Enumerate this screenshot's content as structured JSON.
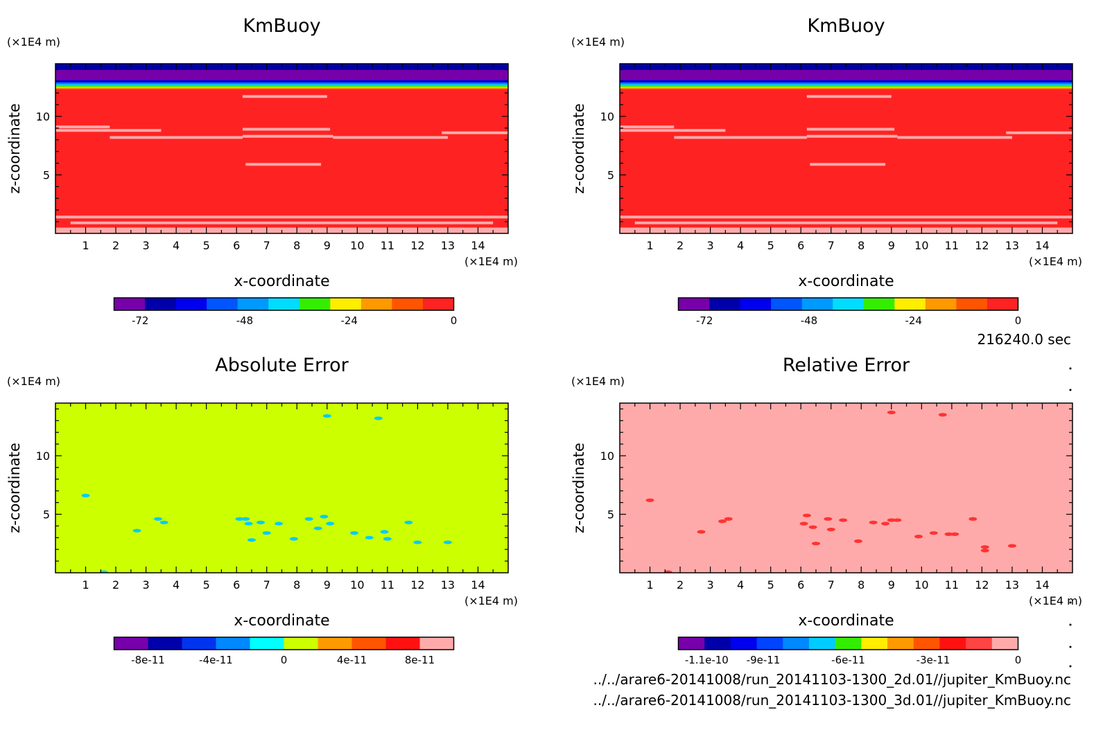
{
  "figure": {
    "time_label": "216240.0 sec",
    "file_lines": [
      "../../arare6-20141008/run_20141103-1300_2d.01//jupiter_KmBuoy.nc",
      "../../arare6-20141008/run_20141103-1300_3d.01//jupiter_KmBuoy.nc"
    ]
  },
  "chart_data": [
    {
      "type": "heatmap",
      "title": "KmBuoy",
      "xlabel": "x-coordinate",
      "ylabel": "z-coordinate",
      "x_unit": "(×1E4 m)",
      "y_unit": "(×1E4 m)",
      "xlim": [
        0,
        15
      ],
      "ylim": [
        0,
        14.5
      ],
      "x_ticks": [
        "1",
        "2",
        "3",
        "4",
        "5",
        "6",
        "7",
        "8",
        "9",
        "10",
        "11",
        "12",
        "13",
        "14"
      ],
      "y_ticks": [
        "5",
        "10"
      ],
      "background_color": "#ff2222",
      "top_bands": [
        {
          "z0": 13.95,
          "z1": 14.5,
          "color": "#0000aa"
        },
        {
          "z0": 13.1,
          "z1": 13.95,
          "color": "#7700aa"
        },
        {
          "z0": 12.9,
          "z1": 13.1,
          "color": "#0000dd"
        },
        {
          "z0": 12.75,
          "z1": 12.9,
          "color": "#0077ff"
        },
        {
          "z0": 12.62,
          "z1": 12.75,
          "color": "#00ddff"
        },
        {
          "z0": 12.52,
          "z1": 12.62,
          "color": "#33ee00"
        },
        {
          "z0": 12.44,
          "z1": 12.52,
          "color": "#ffee00"
        },
        {
          "z0": 12.36,
          "z1": 12.44,
          "color": "#ff9900"
        },
        {
          "z0": 12.3,
          "z1": 12.36,
          "color": "#ff5500"
        }
      ],
      "bottom_fill": {
        "z1": 0.5,
        "color": "#ffaaaa"
      },
      "streaks": [
        {
          "x0": 0,
          "x1": 1.8,
          "z": 9.1,
          "color": "#ffaaaa"
        },
        {
          "x0": 0,
          "x1": 3.5,
          "z": 8.8,
          "color": "#ffaaaa"
        },
        {
          "x0": 1.8,
          "x1": 6.2,
          "z": 8.2,
          "color": "#ffaaaa"
        },
        {
          "x0": 6.2,
          "x1": 9.2,
          "z": 8.3,
          "color": "#ffaaaa"
        },
        {
          "x0": 9.2,
          "x1": 13.0,
          "z": 8.2,
          "color": "#ffaaaa"
        },
        {
          "x0": 12.8,
          "x1": 15,
          "z": 8.6,
          "color": "#ffaaaa"
        },
        {
          "x0": 6.2,
          "x1": 9.1,
          "z": 8.9,
          "color": "#ffaaaa"
        },
        {
          "x0": 6.3,
          "x1": 8.8,
          "z": 5.9,
          "color": "#ffaaaa"
        },
        {
          "x0": 6.2,
          "x1": 9.0,
          "z": 11.7,
          "color": "#ffaaaa"
        },
        {
          "x0": 0,
          "x1": 15,
          "z": 1.4,
          "color": "#ffaaaa"
        },
        {
          "x0": 0.5,
          "x1": 14.5,
          "z": 0.9,
          "color": "#ffaaaa"
        }
      ],
      "colorbar": {
        "colors": [
          "#7700aa",
          "#0000aa",
          "#0000ee",
          "#0055ff",
          "#0099ff",
          "#00ddff",
          "#33ee00",
          "#ffee00",
          "#ff9900",
          "#ff5500",
          "#ff2222"
        ],
        "min": -78,
        "max": 0,
        "labels": [
          "-72",
          "-48",
          "-24",
          "0"
        ],
        "label_values": [
          -72,
          -48,
          -24,
          0
        ]
      },
      "spots": []
    },
    {
      "type": "heatmap",
      "title": "KmBuoy",
      "xlabel": "x-coordinate",
      "ylabel": "z-coordinate",
      "x_unit": "(×1E4 m)",
      "y_unit": "(×1E4 m)",
      "xlim": [
        0,
        15
      ],
      "ylim": [
        0,
        14.5
      ],
      "x_ticks": [
        "1",
        "2",
        "3",
        "4",
        "5",
        "6",
        "7",
        "8",
        "9",
        "10",
        "11",
        "12",
        "13",
        "14"
      ],
      "y_ticks": [
        "5",
        "10"
      ],
      "background_color": "#ff2222",
      "top_bands": [
        {
          "z0": 13.95,
          "z1": 14.5,
          "color": "#0000aa"
        },
        {
          "z0": 13.1,
          "z1": 13.95,
          "color": "#7700aa"
        },
        {
          "z0": 12.9,
          "z1": 13.1,
          "color": "#0000dd"
        },
        {
          "z0": 12.75,
          "z1": 12.9,
          "color": "#0077ff"
        },
        {
          "z0": 12.62,
          "z1": 12.75,
          "color": "#00ddff"
        },
        {
          "z0": 12.52,
          "z1": 12.62,
          "color": "#33ee00"
        },
        {
          "z0": 12.44,
          "z1": 12.52,
          "color": "#ffee00"
        },
        {
          "z0": 12.36,
          "z1": 12.44,
          "color": "#ff9900"
        },
        {
          "z0": 12.3,
          "z1": 12.36,
          "color": "#ff5500"
        }
      ],
      "bottom_fill": {
        "z1": 0.5,
        "color": "#ffaaaa"
      },
      "streaks": [
        {
          "x0": 0,
          "x1": 1.8,
          "z": 9.1,
          "color": "#ffaaaa"
        },
        {
          "x0": 0,
          "x1": 3.5,
          "z": 8.8,
          "color": "#ffaaaa"
        },
        {
          "x0": 1.8,
          "x1": 6.2,
          "z": 8.2,
          "color": "#ffaaaa"
        },
        {
          "x0": 6.2,
          "x1": 9.2,
          "z": 8.3,
          "color": "#ffaaaa"
        },
        {
          "x0": 9.2,
          "x1": 13.0,
          "z": 8.2,
          "color": "#ffaaaa"
        },
        {
          "x0": 12.8,
          "x1": 15,
          "z": 8.6,
          "color": "#ffaaaa"
        },
        {
          "x0": 6.2,
          "x1": 9.1,
          "z": 8.9,
          "color": "#ffaaaa"
        },
        {
          "x0": 6.3,
          "x1": 8.8,
          "z": 5.9,
          "color": "#ffaaaa"
        },
        {
          "x0": 6.2,
          "x1": 9.0,
          "z": 11.7,
          "color": "#ffaaaa"
        },
        {
          "x0": 0,
          "x1": 15,
          "z": 1.4,
          "color": "#ffaaaa"
        },
        {
          "x0": 0.5,
          "x1": 14.5,
          "z": 0.9,
          "color": "#ffaaaa"
        }
      ],
      "colorbar": {
        "colors": [
          "#7700aa",
          "#0000aa",
          "#0000ee",
          "#0055ff",
          "#0099ff",
          "#00ddff",
          "#33ee00",
          "#ffee00",
          "#ff9900",
          "#ff5500",
          "#ff2222"
        ],
        "min": -78,
        "max": 0,
        "labels": [
          "-72",
          "-48",
          "-24",
          "0"
        ],
        "label_values": [
          -72,
          -48,
          -24,
          0
        ]
      },
      "spots": []
    },
    {
      "type": "heatmap",
      "title": "Absolute Error",
      "xlabel": "x-coordinate",
      "ylabel": "z-coordinate",
      "x_unit": "(×1E4 m)",
      "y_unit": "(×1E4 m)",
      "xlim": [
        0,
        15
      ],
      "ylim": [
        0,
        14.5
      ],
      "x_ticks": [
        "1",
        "2",
        "3",
        "4",
        "5",
        "6",
        "7",
        "8",
        "9",
        "10",
        "11",
        "12",
        "13",
        "14"
      ],
      "y_ticks": [
        "5",
        "10"
      ],
      "background_color": "#ccff00",
      "top_bands": [],
      "bottom_fill": null,
      "streaks": [],
      "colorbar": {
        "colors": [
          "#7700aa",
          "#0000aa",
          "#0033ee",
          "#0088ff",
          "#00ffff",
          "#ccff00",
          "#ff9900",
          "#ff5500",
          "#ff1111",
          "#ffaaaa"
        ],
        "min": -1e-10,
        "max": 1e-10,
        "labels": [
          "-8e-11",
          "-4e-11",
          "0",
          "4e-11",
          "8e-11"
        ],
        "label_values": [
          -8e-11,
          -4e-11,
          0,
          4e-11,
          8e-11
        ]
      },
      "spot_color": "#00ccff",
      "spots": [
        [
          1.0,
          6.6
        ],
        [
          2.7,
          3.6
        ],
        [
          3.4,
          4.6
        ],
        [
          3.6,
          4.3
        ],
        [
          6.1,
          4.6
        ],
        [
          6.3,
          4.6
        ],
        [
          6.4,
          4.2
        ],
        [
          6.5,
          2.8
        ],
        [
          6.8,
          4.3
        ],
        [
          7.0,
          3.4
        ],
        [
          7.4,
          4.2
        ],
        [
          7.9,
          2.9
        ],
        [
          8.4,
          4.6
        ],
        [
          8.7,
          3.8
        ],
        [
          8.9,
          4.8
        ],
        [
          9.1,
          4.2
        ],
        [
          9.0,
          13.4
        ],
        [
          9.9,
          3.4
        ],
        [
          10.4,
          3.0
        ],
        [
          10.7,
          13.2
        ],
        [
          10.9,
          3.5
        ],
        [
          11.0,
          2.9
        ],
        [
          11.7,
          4.3
        ],
        [
          12.0,
          2.6
        ],
        [
          13.0,
          2.6
        ],
        [
          1.6,
          0.05
        ]
      ]
    },
    {
      "type": "heatmap",
      "title": "Relative Error",
      "xlabel": "x-coordinate",
      "ylabel": "z-coordinate",
      "x_unit": "(×1E4 m)",
      "y_unit": "(×1E4 m)",
      "xlim": [
        0,
        15
      ],
      "ylim": [
        0,
        14.5
      ],
      "x_ticks": [
        "1",
        "2",
        "3",
        "4",
        "5",
        "6",
        "7",
        "8",
        "9",
        "10",
        "11",
        "12",
        "13",
        "14"
      ],
      "y_ticks": [
        "5",
        "10"
      ],
      "background_color": "#ffaaaa",
      "top_bands": [],
      "bottom_fill": null,
      "streaks": [],
      "colorbar": {
        "colors": [
          "#7700aa",
          "#0000aa",
          "#0000ee",
          "#0044ff",
          "#0088ff",
          "#00ccff",
          "#33ee00",
          "#ffee00",
          "#ff9900",
          "#ff5500",
          "#ff1111",
          "#ff4444",
          "#ffaaaa"
        ],
        "min": -1.2e-10,
        "max": 0,
        "labels": [
          "-1.1e-10",
          "-9e-11",
          "-6e-11",
          "-3e-11",
          "0"
        ],
        "label_values": [
          -1.1e-10,
          -9e-11,
          -6e-11,
          -3e-11,
          0
        ]
      },
      "spot_color": "#ff3333",
      "spots": [
        [
          1.0,
          6.2
        ],
        [
          2.7,
          3.5
        ],
        [
          3.4,
          4.4
        ],
        [
          3.6,
          4.6
        ],
        [
          6.2,
          4.9
        ],
        [
          6.1,
          4.2
        ],
        [
          6.4,
          3.9
        ],
        [
          6.5,
          2.5
        ],
        [
          6.9,
          4.6
        ],
        [
          7.0,
          3.7
        ],
        [
          7.4,
          4.5
        ],
        [
          7.9,
          2.7
        ],
        [
          8.4,
          4.3
        ],
        [
          8.8,
          4.2
        ],
        [
          9.0,
          4.5
        ],
        [
          9.2,
          4.5
        ],
        [
          9.0,
          13.7
        ],
        [
          9.9,
          3.1
        ],
        [
          10.4,
          3.4
        ],
        [
          10.7,
          13.5
        ],
        [
          10.9,
          3.3
        ],
        [
          11.1,
          3.3
        ],
        [
          11.7,
          4.6
        ],
        [
          12.1,
          2.2
        ],
        [
          12.1,
          1.9
        ],
        [
          13.0,
          2.3
        ],
        [
          1.6,
          0.05
        ]
      ]
    }
  ]
}
